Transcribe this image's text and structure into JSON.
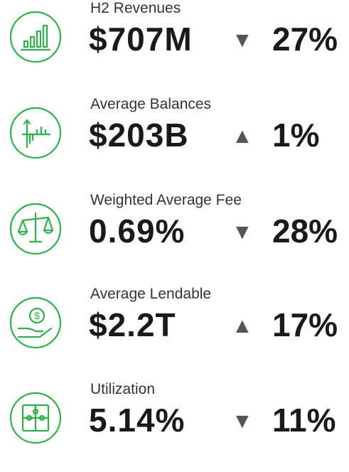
{
  "items": [
    {
      "label": "H2 Revenues",
      "value": "$707M",
      "arrow": "▼",
      "change": "27%"
    },
    {
      "label": "Average Balances",
      "value": "$203B",
      "arrow": "▲",
      "change": "1%"
    },
    {
      "label": "Weighted Average Fee",
      "value": "0.69%",
      "arrow": "▼",
      "change": "28%"
    },
    {
      "label": "Average Lendable",
      "value": "$2.2T",
      "arrow": "▲",
      "change": "17%"
    },
    {
      "label": "Utilization",
      "value": "5.14%",
      "arrow": "▼",
      "change": "11%"
    }
  ]
}
